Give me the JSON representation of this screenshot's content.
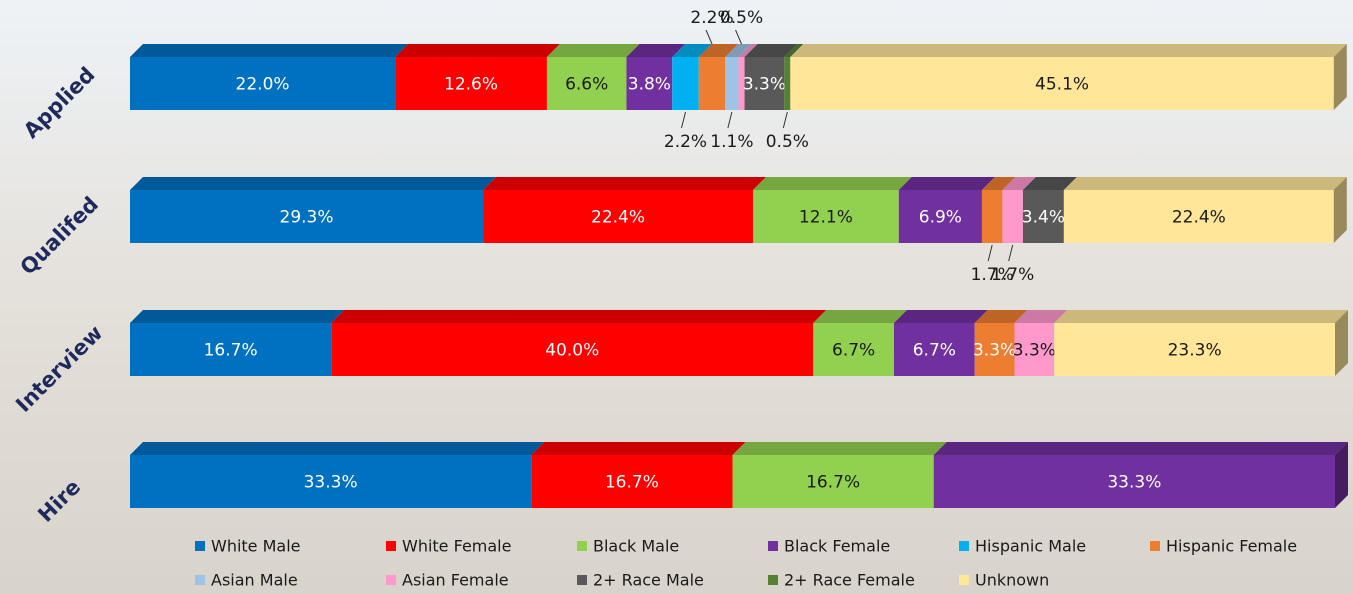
{
  "chart_data": {
    "type": "stacked-bar-100",
    "categories": [
      "Applied",
      "Qualifed",
      "Interview",
      "Hire"
    ],
    "xlim": [
      0,
      100
    ],
    "legend": "bottom",
    "series": [
      {
        "name": "White Male",
        "color": "#0070c0",
        "values": [
          22.0,
          29.3,
          16.7,
          33.3
        ],
        "value_labels": [
          "22.0%",
          "29.3%",
          "16.7%",
          "33.3%"
        ]
      },
      {
        "name": "White Female",
        "color": "#ff0000",
        "values": [
          12.6,
          22.4,
          40.0,
          16.7
        ],
        "value_labels": [
          "12.6%",
          "22.4%",
          "40.0%",
          "16.7%"
        ]
      },
      {
        "name": "Black Male",
        "color": "#92d050",
        "values": [
          6.6,
          12.1,
          6.7,
          16.7
        ],
        "value_labels": [
          "6.6%",
          "12.1%",
          "6.7%",
          "16.7%"
        ]
      },
      {
        "name": "Black Female",
        "color": "#7030a0",
        "values": [
          3.8,
          6.9,
          6.7,
          33.3
        ],
        "value_labels": [
          "3.8%",
          "6.9%",
          "6.7%",
          "33.3%"
        ]
      },
      {
        "name": "Hispanic Male",
        "color": "#00b0f0",
        "values": [
          2.2,
          null,
          null,
          null
        ],
        "value_labels": [
          "2.2%",
          null,
          null,
          null
        ]
      },
      {
        "name": "Hispanic Female",
        "color": "#ed7d31",
        "values": [
          2.2,
          1.7,
          3.3,
          null
        ],
        "value_labels": [
          "2.2%",
          "1.7%",
          "3.3%",
          null
        ]
      },
      {
        "name": "Asian Male",
        "color": "#9dc3e6",
        "values": [
          1.1,
          null,
          null,
          null
        ],
        "value_labels": [
          "1.1%",
          null,
          null,
          null
        ]
      },
      {
        "name": "Asian Female",
        "color": "#ff99cc",
        "values": [
          0.5,
          1.7,
          3.3,
          null
        ],
        "value_labels": [
          "0.5%",
          "1.7%",
          "3.3%",
          null
        ]
      },
      {
        "name": "2+ Race Male",
        "color": "#595959",
        "values": [
          3.3,
          3.4,
          null,
          null
        ],
        "value_labels": [
          "3.3%",
          "3.4%",
          null,
          null
        ]
      },
      {
        "name": "2+ Race Female",
        "color": "#548235",
        "values": [
          0.5,
          null,
          null,
          null
        ],
        "value_labels": [
          "0.5%",
          null,
          null,
          null
        ]
      },
      {
        "name": "Unknown",
        "color": "#ffe699",
        "values": [
          45.1,
          22.4,
          23.3,
          null
        ],
        "value_labels": [
          "45.1%",
          "22.4%",
          "23.3%",
          null
        ]
      }
    ]
  }
}
